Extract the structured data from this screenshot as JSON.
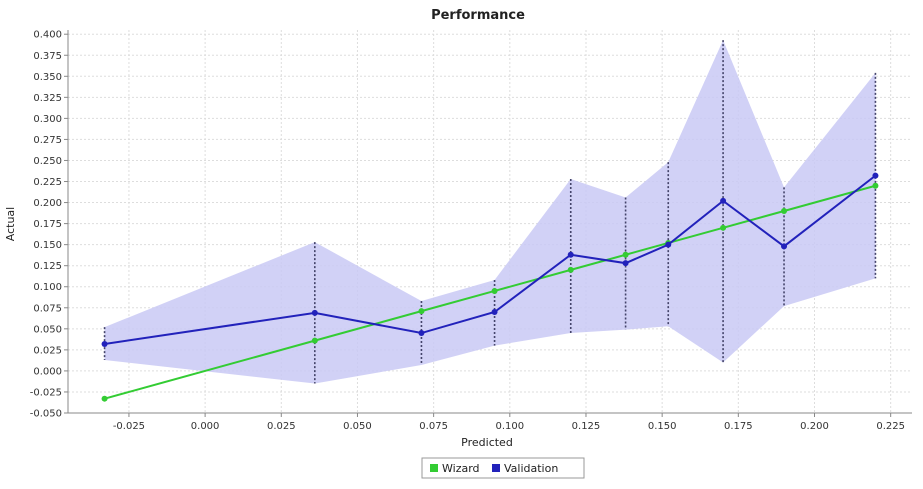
{
  "chart_data": {
    "type": "line",
    "title": "Performance",
    "xlabel": "Predicted",
    "ylabel": "Actual",
    "xlim": [
      -0.045,
      0.232
    ],
    "ylim": [
      -0.05,
      0.405
    ],
    "x_ticks": [
      "-0.025",
      "0.000",
      "0.025",
      "0.050",
      "0.075",
      "0.100",
      "0.125",
      "0.150",
      "0.175",
      "0.200",
      "0.225"
    ],
    "y_ticks": [
      "0.400",
      "0.375",
      "0.350",
      "0.325",
      "0.300",
      "0.275",
      "0.250",
      "0.225",
      "0.200",
      "0.175",
      "0.150",
      "0.125",
      "0.100",
      "0.075",
      "0.050",
      "0.025",
      "0.000",
      "-0.025",
      "-0.050"
    ],
    "grid": true,
    "legend_position": "bottom-center",
    "series": [
      {
        "name": "Wizard",
        "color": "#33cc33",
        "x": [
          -0.033,
          0.036,
          0.071,
          0.095,
          0.12,
          0.138,
          0.152,
          0.17,
          0.19,
          0.22
        ],
        "y": [
          -0.033,
          0.036,
          0.071,
          0.095,
          0.12,
          0.138,
          0.152,
          0.17,
          0.19,
          0.22
        ]
      },
      {
        "name": "Validation",
        "color": "#2222bb",
        "x": [
          -0.033,
          0.036,
          0.071,
          0.095,
          0.12,
          0.138,
          0.152,
          0.17,
          0.19,
          0.22
        ],
        "y": [
          0.032,
          0.069,
          0.045,
          0.07,
          0.138,
          0.128,
          0.15,
          0.202,
          0.148,
          0.232
        ]
      }
    ],
    "band": {
      "color": "#c9c9f5",
      "x": [
        -0.033,
        0.036,
        0.071,
        0.095,
        0.12,
        0.138,
        0.152,
        0.17,
        0.19,
        0.22
      ],
      "upper": [
        0.052,
        0.153,
        0.083,
        0.108,
        0.228,
        0.206,
        0.248,
        0.393,
        0.218,
        0.354
      ],
      "lower": [
        0.013,
        -0.015,
        0.007,
        0.03,
        0.045,
        0.049,
        0.053,
        0.01,
        0.077,
        0.11
      ]
    }
  }
}
